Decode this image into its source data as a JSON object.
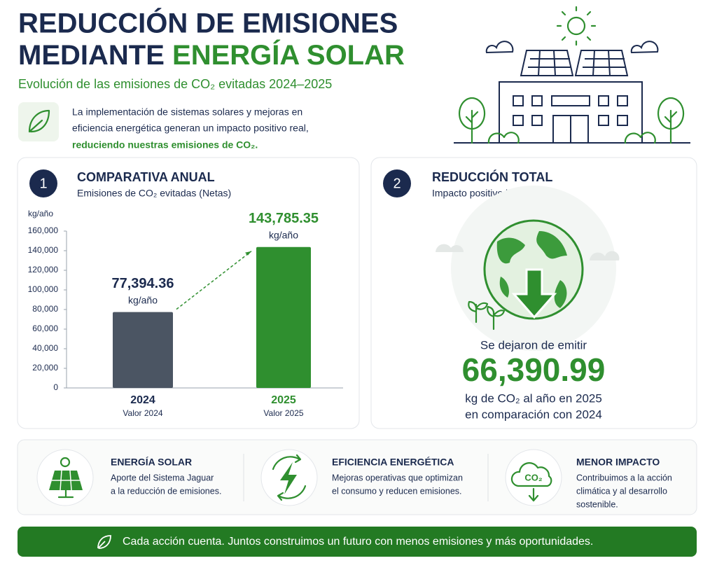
{
  "header": {
    "title_line1": "REDUCCIÓN DE EMISIONES",
    "title_line2_a": "MEDIANTE",
    "title_line2_b": "ENERGÍA SOLAR",
    "subtitle": "Evolución de las emisiones de CO₂ evitadas 2024–2025",
    "intro_lines": [
      "La implementación de sistemas solares y mejoras en",
      "eficiencia energética generan un impacto positivo real,"
    ],
    "intro_highlight": "reduciendo nuestras emisiones de CO₂."
  },
  "panel1": {
    "number": "1",
    "title": "COMPARATIVA ANUAL",
    "subtitle": "Emisiones de CO₂ evitadas (Netas)"
  },
  "chart_data": {
    "type": "bar",
    "y_label": "kg/año",
    "ylim": [
      0,
      160000
    ],
    "yticks": [
      0,
      {
        "value": 20000,
        "label": "20,000"
      },
      {
        "value": 40000,
        "label": "40,000"
      },
      {
        "value": 60000,
        "label": "60,000"
      },
      {
        "value": 80000,
        "label": "80,000"
      },
      {
        "value": 100000,
        "label": "100,000"
      },
      {
        "value": 120000,
        "label": "120,000"
      },
      {
        "value": 140000,
        "label": "140,000"
      },
      {
        "value": 160000,
        "label": "160,000"
      }
    ],
    "categories": [
      "2024",
      "2025"
    ],
    "category_notes": [
      "Valor 2024",
      "Valor 2025"
    ],
    "values": [
      77394.36,
      143785.35
    ],
    "value_labels": [
      "77,394.36",
      "143,785.35"
    ],
    "value_units": [
      "kg/año",
      "kg/año"
    ],
    "colors": [
      "#4b5563",
      "#2f8f2f"
    ],
    "label_colors": [
      "#1b2a4e",
      "#2f8f2f"
    ]
  },
  "panel2": {
    "number": "2",
    "title": "REDUCCIÓN TOTAL",
    "subtitle": "Impacto positivo logrado",
    "lead": "Se dejaron de emitir",
    "value": 66390.99,
    "value_label": "66,390.99",
    "lines": [
      "kg de CO₂ al año en 2025",
      "en comparación con 2024"
    ]
  },
  "features": [
    {
      "title": "ENERGÍA SOLAR",
      "lines": [
        "Aporte del Sistema Jaguar",
        "a la reducción de emisiones."
      ]
    },
    {
      "title": "EFICIENCIA ENERGÉTICA",
      "lines": [
        "Mejoras operativas que optimizan",
        "el consumo y reducen emisiones."
      ]
    },
    {
      "title": "MENOR IMPACTO",
      "lines": [
        "Contribuimos a la acción",
        "climática y al desarrollo",
        "sostenible."
      ],
      "icon_text": "CO₂"
    }
  ],
  "footer": "Cada acción cuenta. Juntos construimos un futuro con menos emisiones y más oportunidades."
}
